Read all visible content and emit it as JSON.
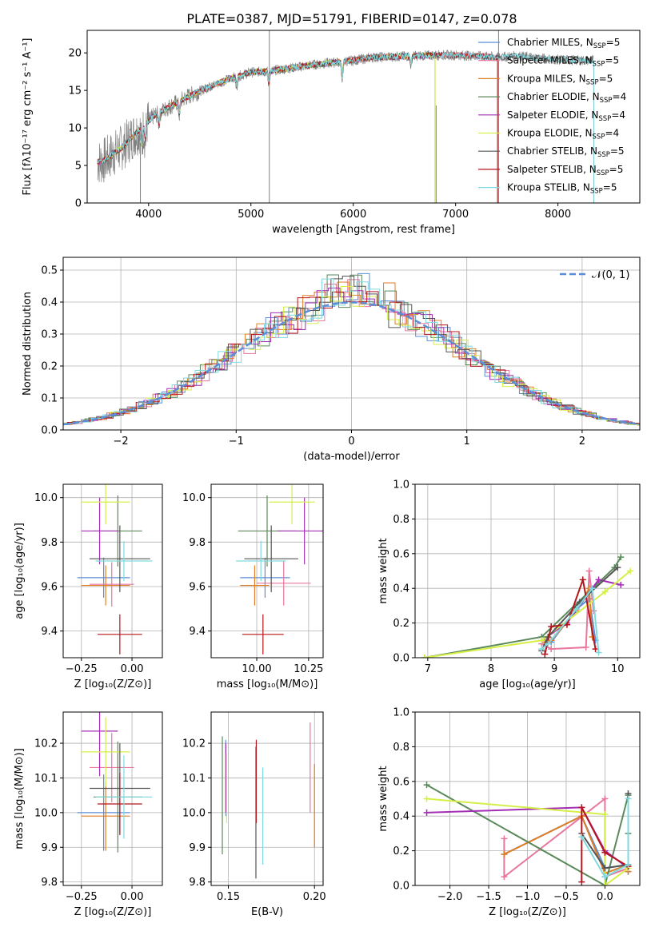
{
  "figure_title": "PLATE=0387, MJD=51791, FIBERID=0147, z=0.078",
  "colors": {
    "chabrier_miles": "#5b8ed6",
    "salpeter_miles": "#e8769f",
    "kroupa_miles": "#e07e28",
    "chabrier_elodie": "#5a8a5a",
    "salpeter_elodie": "#a32eb5",
    "kroupa_elodie": "#d6ef48",
    "chabrier_stelib": "#555555",
    "salpeter_stelib": "#b5141a",
    "kroupa_stelib": "#7fd9df",
    "data": "#808080",
    "normal": "#5b8ed6"
  },
  "chart_data": [
    {
      "id": "spectrum",
      "type": "line",
      "xlabel": "wavelength [Angstrom, rest frame]",
      "ylabel": "Flux [fλ10⁻¹⁷ erg cm⁻² s⁻¹ A⁻¹]",
      "xlim": [
        3400,
        8800
      ],
      "ylim": [
        0,
        23
      ],
      "xticks": [
        4000,
        5000,
        6000,
        7000,
        8000
      ],
      "yticks": [
        0,
        5,
        10,
        15,
        20
      ],
      "legend_position": "top-right",
      "legend": [
        {
          "key": "chabrier_miles",
          "label": "Chabrier MILES, N",
          "sub": "SSP",
          "suffix": "=5"
        },
        {
          "key": "salpeter_miles",
          "label": "Salpeter MILES, N",
          "sub": "SSP",
          "suffix": "=5"
        },
        {
          "key": "kroupa_miles",
          "label": "Kroupa MILES, N",
          "sub": "SSP",
          "suffix": "=5"
        },
        {
          "key": "chabrier_elodie",
          "label": "Chabrier ELODIE, N",
          "sub": "SSP",
          "suffix": "=4"
        },
        {
          "key": "salpeter_elodie",
          "label": "Salpeter ELODIE, N",
          "sub": "SSP",
          "suffix": "=4"
        },
        {
          "key": "kroupa_elodie",
          "label": "Kroupa ELODIE, N",
          "sub": "SSP",
          "suffix": "=4"
        },
        {
          "key": "chabrier_stelib",
          "label": "Chabrier STELIB, N",
          "sub": "SSP",
          "suffix": "=5"
        },
        {
          "key": "salpeter_stelib",
          "label": "Salpeter STELIB, N",
          "sub": "SSP",
          "suffix": "=5"
        },
        {
          "key": "kroupa_stelib",
          "label": "Kroupa STELIB, N",
          "sub": "SSP",
          "suffix": "=5"
        }
      ],
      "continuum": [
        [
          3550,
          5.5
        ],
        [
          3650,
          6.5
        ],
        [
          3750,
          7.5
        ],
        [
          3850,
          9.0
        ],
        [
          3950,
          10.2
        ],
        [
          4050,
          11.6
        ],
        [
          4200,
          12.8
        ],
        [
          4400,
          14.3
        ],
        [
          4600,
          15.5
        ],
        [
          4800,
          16.6
        ],
        [
          5000,
          17.4
        ],
        [
          5200,
          17.6
        ],
        [
          5400,
          18.0
        ],
        [
          5600,
          18.4
        ],
        [
          5800,
          18.7
        ],
        [
          6000,
          19.0
        ],
        [
          6200,
          19.4
        ],
        [
          6400,
          19.5
        ],
        [
          6600,
          19.6
        ],
        [
          6800,
          19.7
        ],
        [
          7000,
          19.7
        ],
        [
          7200,
          19.6
        ],
        [
          7400,
          19.4
        ],
        [
          7600,
          19.6
        ],
        [
          7800,
          19.3
        ],
        [
          8000,
          19.1
        ],
        [
          8200,
          19.0
        ],
        [
          8350,
          19.0
        ]
      ],
      "model_ranges": {
        "chabrier_miles": [
          3500,
          7410
        ],
        "salpeter_miles": [
          3500,
          7410
        ],
        "kroupa_miles": [
          3500,
          7410
        ],
        "chabrier_elodie": [
          3500,
          6800
        ],
        "salpeter_elodie": [
          3500,
          6800
        ],
        "kroupa_elodie": [
          3500,
          6800
        ],
        "chabrier_stelib": [
          3500,
          8350
        ],
        "salpeter_stelib": [
          3500,
          7410
        ],
        "kroupa_stelib": [
          3500,
          8350
        ]
      }
    },
    {
      "id": "residuals",
      "type": "histogram",
      "xlabel": "(data-model)/error",
      "ylabel": "Normed distribution",
      "xlim": [
        -2.5,
        2.5
      ],
      "ylim": [
        0,
        0.54
      ],
      "xticks": [
        -2,
        -1,
        0,
        1,
        2
      ],
      "yticks": [
        0.0,
        0.1,
        0.2,
        0.3,
        0.4,
        0.5
      ],
      "grid": true,
      "legend_position": "top-right",
      "legend": [
        {
          "key": "normal",
          "label": "𝒩(0, 1)",
          "style": "dashed"
        }
      ],
      "normal_curve": {
        "mean": 0,
        "sigma": 1
      }
    },
    {
      "id": "age-vs-Z",
      "type": "scatter",
      "xlabel": "Z [log₁₀(Z/Z⊙)]",
      "ylabel": "age  [log₁₀(age/yr)]",
      "xlim": [
        -0.34,
        0.15
      ],
      "ylim": [
        9.28,
        10.06
      ],
      "xticks": [
        -0.25,
        0.0
      ],
      "xticklabels": [
        "−0.25",
        "0.00"
      ],
      "yticks": [
        9.4,
        9.6,
        9.8,
        10.0
      ],
      "points": [
        {
          "key": "chabrier_miles",
          "x": -0.14,
          "xerr": 0.13,
          "y": 9.64,
          "yerr": 0.09
        },
        {
          "key": "salpeter_miles",
          "x": -0.1,
          "xerr": 0.11,
          "y": 9.61,
          "yerr": 0.1
        },
        {
          "key": "kroupa_miles",
          "x": -0.13,
          "xerr": 0.12,
          "y": 9.605,
          "yerr": 0.09
        },
        {
          "key": "chabrier_elodie",
          "x": -0.07,
          "xerr": 0.12,
          "y": 9.85,
          "yerr": 0.16
        },
        {
          "key": "salpeter_elodie",
          "x": -0.16,
          "xerr": 0.09,
          "y": 9.85,
          "yerr": 0.15
        },
        {
          "key": "kroupa_elodie",
          "x": -0.13,
          "xerr": 0.12,
          "y": 9.98,
          "yerr": 0.1
        },
        {
          "key": "chabrier_stelib",
          "x": -0.06,
          "xerr": 0.15,
          "y": 9.725,
          "yerr": 0.15
        },
        {
          "key": "salpeter_stelib",
          "x": -0.06,
          "xerr": 0.11,
          "y": 9.385,
          "yerr": 0.09
        },
        {
          "key": "kroupa_stelib",
          "x": -0.04,
          "xerr": 0.14,
          "y": 9.715,
          "yerr": 0.09
        }
      ]
    },
    {
      "id": "age-vs-mass",
      "type": "scatter",
      "xlabel": "mass [log₁₀(M/M⊙)]",
      "xlim": [
        9.78,
        10.32
      ],
      "ylim": [
        9.28,
        10.06
      ],
      "xticks": [
        10.0,
        10.25
      ],
      "xticklabels": [
        "10.00",
        "10.25"
      ],
      "yticks": [
        9.4,
        9.6,
        9.8,
        10.0
      ],
      "points": [
        {
          "key": "chabrier_miles",
          "x": 10.04,
          "xerr": 0.12,
          "y": 9.64,
          "yerr": 0.09
        },
        {
          "key": "salpeter_miles",
          "x": 10.13,
          "xerr": 0.13,
          "y": 9.615,
          "yerr": 0.1
        },
        {
          "key": "kroupa_miles",
          "x": 9.99,
          "xerr": 0.07,
          "y": 9.605,
          "yerr": 0.09
        },
        {
          "key": "chabrier_elodie",
          "x": 10.05,
          "xerr": 0.14,
          "y": 9.85,
          "yerr": 0.16
        },
        {
          "key": "salpeter_elodie",
          "x": 10.23,
          "xerr": 0.13,
          "y": 9.85,
          "yerr": 0.15
        },
        {
          "key": "kroupa_elodie",
          "x": 10.17,
          "xerr": 0.11,
          "y": 9.98,
          "yerr": 0.1
        },
        {
          "key": "chabrier_stelib",
          "x": 10.07,
          "xerr": 0.13,
          "y": 9.725,
          "yerr": 0.15
        },
        {
          "key": "salpeter_stelib",
          "x": 10.03,
          "xerr": 0.1,
          "y": 9.385,
          "yerr": 0.09
        },
        {
          "key": "kroupa_stelib",
          "x": 10.02,
          "xerr": 0.12,
          "y": 9.715,
          "yerr": 0.09
        }
      ]
    },
    {
      "id": "weight-vs-age",
      "type": "line",
      "xlabel": "age  [log₁₀(age/yr)]",
      "ylabel": "mass weight",
      "xlim": [
        6.8,
        10.35
      ],
      "ylim": [
        0,
        1
      ],
      "xticks": [
        7,
        8,
        9,
        10
      ],
      "yticks": [
        0.0,
        0.2,
        0.4,
        0.6,
        0.8,
        1.0
      ],
      "grid": true,
      "series": [
        {
          "key": "chabrier_miles",
          "x": [
            8.85,
            8.95,
            9.35,
            9.55,
            9.65
          ],
          "y": [
            0.1,
            0.09,
            0.28,
            0.34,
            0.1
          ]
        },
        {
          "key": "salpeter_miles",
          "x": [
            8.8,
            8.95,
            9.5,
            9.55,
            9.62
          ],
          "y": [
            0.08,
            0.05,
            0.06,
            0.5,
            0.27
          ]
        },
        {
          "key": "kroupa_miles",
          "x": [
            8.85,
            8.95,
            9.35,
            9.55,
            9.6
          ],
          "y": [
            0.09,
            0.1,
            0.27,
            0.4,
            0.12
          ]
        },
        {
          "key": "chabrier_elodie",
          "x": [
            6.95,
            8.8,
            9.95,
            10.05
          ],
          "y": [
            0.0,
            0.12,
            0.52,
            0.58
          ]
        },
        {
          "key": "salpeter_elodie",
          "x": [
            8.8,
            9.2,
            9.7,
            10.05
          ],
          "y": [
            0.1,
            0.2,
            0.45,
            0.42
          ]
        },
        {
          "key": "kroupa_elodie",
          "x": [
            6.95,
            8.8,
            9.8,
            10.2
          ],
          "y": [
            0.0,
            0.1,
            0.38,
            0.5
          ]
        },
        {
          "key": "chabrier_stelib",
          "x": [
            8.8,
            8.9,
            9.4,
            10.0
          ],
          "y": [
            0.04,
            0.12,
            0.32,
            0.52
          ]
        },
        {
          "key": "salpeter_stelib",
          "x": [
            8.85,
            8.95,
            9.2,
            9.45,
            9.65
          ],
          "y": [
            0.02,
            0.18,
            0.19,
            0.45,
            0.05
          ]
        },
        {
          "key": "kroupa_stelib",
          "x": [
            8.8,
            8.9,
            9.35,
            9.6,
            9.7
          ],
          "y": [
            0.05,
            0.08,
            0.28,
            0.4,
            0.03
          ]
        }
      ]
    },
    {
      "id": "mass-vs-Z",
      "type": "scatter",
      "xlabel": "Z [log₁₀(Z/Z⊙)]",
      "ylabel": "mass [log₁₀(M/M⊙)]",
      "xlim": [
        -0.34,
        0.15
      ],
      "ylim": [
        9.79,
        10.29
      ],
      "xticks": [
        -0.25,
        0.0
      ],
      "xticklabels": [
        "−0.25",
        "0.00"
      ],
      "yticks": [
        9.8,
        9.9,
        10.0,
        10.1,
        10.2
      ],
      "points": [
        {
          "key": "chabrier_miles",
          "x": -0.14,
          "xerr": 0.13,
          "y": 10.0,
          "yerr": 0.11
        },
        {
          "key": "salpeter_miles",
          "x": -0.1,
          "xerr": 0.11,
          "y": 10.13,
          "yerr": 0.1
        },
        {
          "key": "kroupa_miles",
          "x": -0.13,
          "xerr": 0.12,
          "y": 9.99,
          "yerr": 0.1
        },
        {
          "key": "chabrier_elodie",
          "x": -0.07,
          "xerr": 0.12,
          "y": 10.045,
          "yerr": 0.16
        },
        {
          "key": "salpeter_elodie",
          "x": -0.16,
          "xerr": 0.09,
          "y": 10.235,
          "yerr": 0.13
        },
        {
          "key": "kroupa_elodie",
          "x": -0.13,
          "xerr": 0.12,
          "y": 10.175,
          "yerr": 0.1
        },
        {
          "key": "chabrier_stelib",
          "x": -0.06,
          "xerr": 0.15,
          "y": 10.07,
          "yerr": 0.13
        },
        {
          "key": "salpeter_stelib",
          "x": -0.06,
          "xerr": 0.11,
          "y": 10.025,
          "yerr": 0.09
        },
        {
          "key": "kroupa_stelib",
          "x": -0.04,
          "xerr": 0.14,
          "y": 10.045,
          "yerr": 0.12
        }
      ]
    },
    {
      "id": "mass-vs-ebv",
      "type": "scatter",
      "xlabel": "E(B-V)",
      "xlim": [
        0.14,
        0.205
      ],
      "ylim": [
        9.79,
        10.29
      ],
      "xticks": [
        0.15,
        0.2
      ],
      "xticklabels": [
        "0.15",
        "0.20"
      ],
      "yticks": [
        9.8,
        9.9,
        10.0,
        10.1,
        10.2
      ],
      "points": [
        {
          "key": "chabrier_miles",
          "x": 0.1485,
          "xerr": 0,
          "y": 10.1,
          "yerr": 0.11
        },
        {
          "key": "salpeter_miles",
          "x": 0.1975,
          "xerr": 0,
          "y": 10.13,
          "yerr": 0.13
        },
        {
          "key": "kroupa_miles",
          "x": 0.2,
          "xerr": 0,
          "y": 10.02,
          "yerr": 0.12
        },
        {
          "key": "chabrier_elodie",
          "x": 0.1465,
          "xerr": 0,
          "y": 10.05,
          "yerr": 0.17
        },
        {
          "key": "salpeter_elodie",
          "x": 0.1485,
          "xerr": 0,
          "y": 10.1,
          "yerr": 0.1
        },
        {
          "key": "kroupa_elodie",
          "x": 0.149,
          "xerr": 0,
          "y": 10.07,
          "yerr": 0.1
        },
        {
          "key": "chabrier_stelib",
          "x": 0.166,
          "xerr": 0,
          "y": 10.0,
          "yerr": 0.19
        },
        {
          "key": "salpeter_stelib",
          "x": 0.1662,
          "xerr": 0,
          "y": 10.09,
          "yerr": 0.12
        },
        {
          "key": "kroupa_stelib",
          "x": 0.17,
          "xerr": 0,
          "y": 9.99,
          "yerr": 0.14
        }
      ]
    },
    {
      "id": "weight-vs-Z",
      "type": "line",
      "xlabel": "Z [log₁₀(Z/Z⊙)]",
      "ylabel": "mass weight",
      "xlim": [
        -2.45,
        0.45
      ],
      "ylim": [
        0,
        1
      ],
      "xticks": [
        -2.0,
        -1.5,
        -1.0,
        -0.5,
        0.0
      ],
      "xticklabels": [
        "−2.0",
        "−1.5",
        "−1.0",
        "−0.5",
        "0.0"
      ],
      "yticks": [
        0.0,
        0.2,
        0.4,
        0.6,
        0.8,
        1.0
      ],
      "grid": true,
      "series": [
        {
          "key": "chabrier_miles",
          "x": [
            -1.3,
            -0.3,
            0.0,
            0.3,
            0.3
          ],
          "y": [
            0.18,
            0.4,
            0.1,
            0.12,
            0.08
          ]
        },
        {
          "key": "salpeter_miles",
          "x": [
            -1.3,
            -1.3,
            0.0,
            0.0,
            0.3
          ],
          "y": [
            0.27,
            0.05,
            0.5,
            0.05,
            0.1
          ]
        },
        {
          "key": "kroupa_miles",
          "x": [
            -1.3,
            -0.3,
            0.0,
            0.3,
            0.3
          ],
          "y": [
            0.18,
            0.4,
            0.07,
            0.12,
            0.08
          ]
        },
        {
          "key": "chabrier_elodie",
          "x": [
            -2.3,
            0.0,
            0.3,
            0.3
          ],
          "y": [
            0.58,
            0.0,
            0.52,
            0.3
          ]
        },
        {
          "key": "salpeter_elodie",
          "x": [
            -2.3,
            -0.3,
            0.0,
            0.3
          ],
          "y": [
            0.42,
            0.45,
            0.2,
            0.1
          ]
        },
        {
          "key": "kroupa_elodie",
          "x": [
            -2.3,
            0.0,
            0.0,
            0.3
          ],
          "y": [
            0.5,
            0.41,
            0.0,
            0.1
          ]
        },
        {
          "key": "chabrier_stelib",
          "x": [
            -0.3,
            0.0,
            0.3,
            0.3
          ],
          "y": [
            0.3,
            0.1,
            0.12,
            0.53
          ]
        },
        {
          "key": "salpeter_stelib",
          "x": [
            -0.3,
            -0.3,
            0.0,
            0.3
          ],
          "y": [
            0.02,
            0.45,
            0.19,
            0.11
          ]
        },
        {
          "key": "kroupa_stelib",
          "x": [
            -0.3,
            0.0,
            0.3,
            0.3
          ],
          "y": [
            0.28,
            0.05,
            0.12,
            0.5
          ]
        }
      ]
    }
  ]
}
